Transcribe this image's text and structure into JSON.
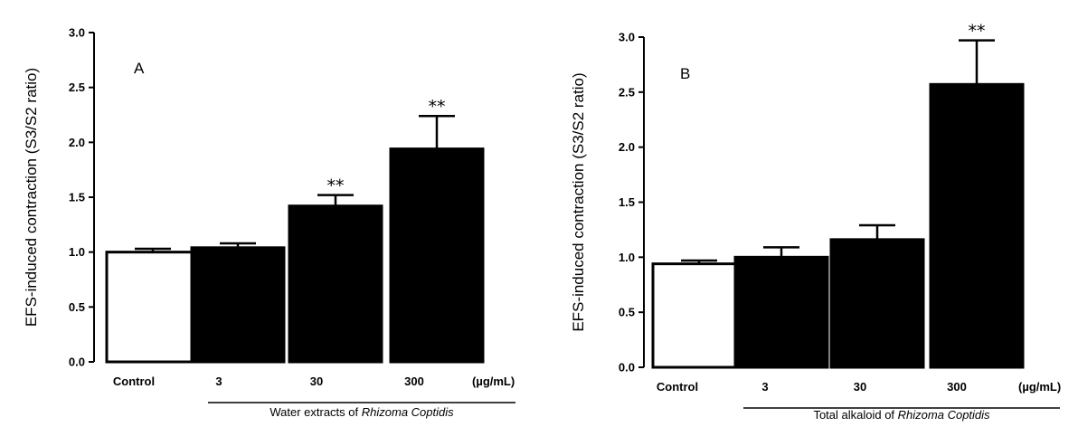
{
  "chart_data": [
    {
      "type": "bar",
      "panel_label": "A",
      "ylabel": "EFS-induced contraction (S3/S2 ratio)",
      "ylim": [
        0,
        3
      ],
      "yticks": [
        "0.0",
        "0.5",
        "1.0",
        "1.5",
        "2.0",
        "2.5",
        "3.0"
      ],
      "categories": [
        "Control",
        "3",
        "30",
        "300"
      ],
      "unit_label": "(µg/mL)",
      "values": [
        1.0,
        1.04,
        1.42,
        1.94
      ],
      "errors": [
        0.03,
        0.04,
        0.1,
        0.3
      ],
      "significance": [
        "",
        "",
        "**",
        "**"
      ],
      "bar_colors": [
        "#ffffff",
        "#000000",
        "#000000",
        "#000000"
      ],
      "group_label": {
        "prefix": "Water extracts of ",
        "italic": "Rhizoma Coptidis"
      }
    },
    {
      "type": "bar",
      "panel_label": "B",
      "ylabel": "EFS-induced contraction (S3/S2 ratio)",
      "ylim": [
        0,
        3
      ],
      "yticks": [
        "0.0",
        "0.5",
        "1.0",
        "1.5",
        "2.0",
        "2.5",
        "3.0"
      ],
      "categories": [
        "Control",
        "3",
        "30",
        "300"
      ],
      "unit_label": "(µg/mL)",
      "values": [
        0.94,
        1.0,
        1.16,
        2.57
      ],
      "errors": [
        0.03,
        0.09,
        0.13,
        0.4
      ],
      "significance": [
        "",
        "",
        "",
        "**"
      ],
      "bar_colors": [
        "#ffffff",
        "#000000",
        "#000000",
        "#000000"
      ],
      "group_label": {
        "prefix": "Total alkaloid of ",
        "italic": "Rhizoma Coptidis"
      }
    }
  ]
}
